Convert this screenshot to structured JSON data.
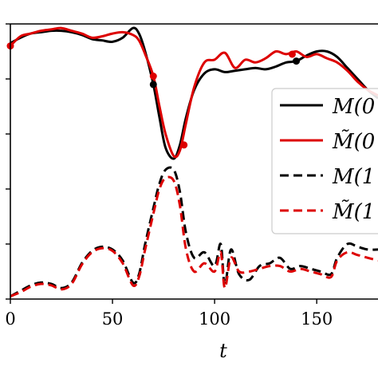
{
  "chart_data": {
    "type": "line",
    "xlabel": "t",
    "ylabel": "",
    "xlim": [
      0,
      180
    ],
    "ylim": [
      0,
      1
    ],
    "x_ticks": [
      0,
      50,
      100,
      150
    ],
    "y_ticks": [
      0,
      0.2,
      0.4,
      0.6,
      0.8,
      1.0
    ],
    "grid": false,
    "legend_position": "right (clipped)",
    "series": [
      {
        "name": "M(0",
        "color": "#000000",
        "style": "solid",
        "x": [
          0,
          5,
          10,
          15,
          20,
          25,
          30,
          35,
          40,
          45,
          50,
          55,
          60,
          63,
          66,
          70,
          73,
          76,
          80,
          83,
          86,
          90,
          95,
          100,
          105,
          110,
          115,
          120,
          125,
          130,
          135,
          140,
          145,
          150,
          155,
          160,
          165,
          170,
          175,
          180
        ],
        "y": [
          0.93,
          0.95,
          0.965,
          0.97,
          0.975,
          0.975,
          0.97,
          0.96,
          0.945,
          0.94,
          0.935,
          0.95,
          0.985,
          0.965,
          0.9,
          0.78,
          0.66,
          0.55,
          0.51,
          0.56,
          0.66,
          0.76,
          0.82,
          0.835,
          0.825,
          0.83,
          0.835,
          0.84,
          0.835,
          0.845,
          0.86,
          0.865,
          0.885,
          0.9,
          0.9,
          0.88,
          0.84,
          0.8,
          0.76,
          0.73
        ]
      },
      {
        "name": "M̃(0",
        "color": "#dd0000",
        "style": "solid",
        "x": [
          0,
          5,
          10,
          15,
          20,
          25,
          30,
          35,
          40,
          45,
          50,
          55,
          60,
          63,
          66,
          70,
          73,
          76,
          80,
          83,
          86,
          90,
          95,
          100,
          105,
          110,
          115,
          120,
          125,
          130,
          135,
          140,
          145,
          150,
          155,
          160,
          165,
          170,
          175,
          180
        ],
        "y": [
          0.92,
          0.955,
          0.965,
          0.975,
          0.98,
          0.985,
          0.975,
          0.965,
          0.95,
          0.955,
          0.965,
          0.97,
          0.96,
          0.94,
          0.89,
          0.81,
          0.7,
          0.6,
          0.52,
          0.54,
          0.64,
          0.77,
          0.86,
          0.87,
          0.895,
          0.84,
          0.87,
          0.86,
          0.875,
          0.9,
          0.89,
          0.9,
          0.88,
          0.89,
          0.875,
          0.86,
          0.83,
          0.79,
          0.76,
          0.74
        ]
      },
      {
        "name": "M(1",
        "color": "#000000",
        "style": "dashed",
        "x": [
          0,
          5,
          10,
          15,
          20,
          25,
          30,
          35,
          40,
          45,
          50,
          55,
          60,
          63,
          66,
          70,
          73,
          76,
          80,
          83,
          86,
          90,
          95,
          100,
          103,
          105,
          108,
          112,
          117,
          122,
          127,
          132,
          137,
          142,
          147,
          152,
          157,
          160,
          165,
          170,
          175,
          180
        ],
        "y": [
          0.01,
          0.03,
          0.05,
          0.06,
          0.055,
          0.04,
          0.06,
          0.13,
          0.175,
          0.19,
          0.18,
          0.14,
          0.06,
          0.09,
          0.2,
          0.33,
          0.42,
          0.47,
          0.47,
          0.39,
          0.24,
          0.15,
          0.17,
          0.12,
          0.2,
          0.05,
          0.18,
          0.09,
          0.07,
          0.12,
          0.13,
          0.15,
          0.11,
          0.12,
          0.11,
          0.1,
          0.09,
          0.15,
          0.2,
          0.19,
          0.18,
          0.18
        ]
      },
      {
        "name": "M̃(1",
        "color": "#dd0000",
        "style": "dashed",
        "x": [
          0,
          5,
          10,
          15,
          20,
          25,
          30,
          35,
          40,
          45,
          50,
          55,
          60,
          63,
          66,
          70,
          73,
          76,
          80,
          83,
          86,
          90,
          95,
          100,
          103,
          105,
          108,
          112,
          117,
          122,
          127,
          132,
          137,
          142,
          147,
          152,
          157,
          160,
          165,
          170,
          175,
          180
        ],
        "y": [
          0.01,
          0.025,
          0.045,
          0.055,
          0.05,
          0.035,
          0.055,
          0.125,
          0.17,
          0.185,
          0.175,
          0.13,
          0.05,
          0.08,
          0.18,
          0.31,
          0.4,
          0.44,
          0.43,
          0.34,
          0.18,
          0.1,
          0.13,
          0.1,
          0.17,
          0.04,
          0.15,
          0.1,
          0.1,
          0.11,
          0.12,
          0.12,
          0.1,
          0.11,
          0.1,
          0.09,
          0.08,
          0.14,
          0.17,
          0.16,
          0.15,
          0.14
        ]
      }
    ],
    "markers": [
      {
        "series": 0,
        "points": [
          [
            70,
            0.78
          ],
          [
            140,
            0.865
          ]
        ]
      },
      {
        "series": 1,
        "points": [
          [
            0,
            0.92
          ],
          [
            70,
            0.81
          ],
          [
            85,
            0.56
          ],
          [
            138,
            0.89
          ]
        ]
      }
    ]
  }
}
